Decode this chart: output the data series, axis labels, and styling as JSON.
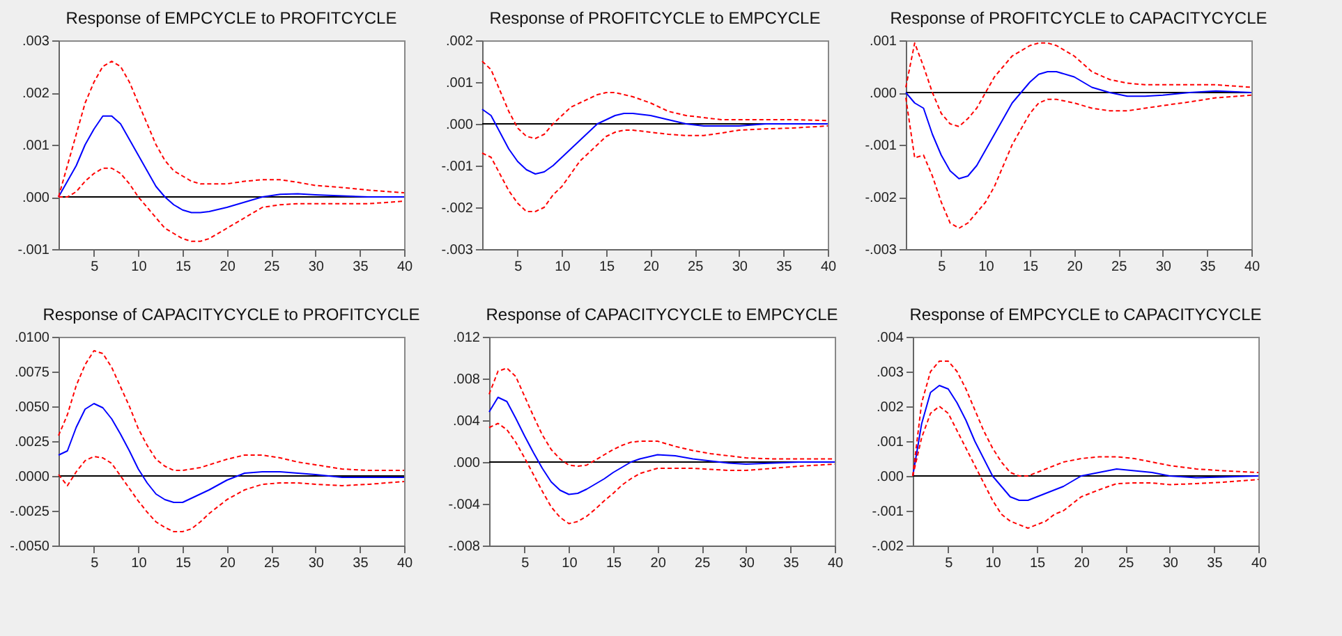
{
  "chart_data": [
    {
      "type": "line",
      "title": "Response of EMPCYCLE to PROFITCYCLE",
      "x": [
        1,
        2,
        3,
        4,
        5,
        6,
        7,
        8,
        9,
        10,
        11,
        12,
        13,
        14,
        15,
        16,
        17,
        18,
        20,
        22,
        24,
        26,
        28,
        30,
        33,
        36,
        40
      ],
      "xlim": [
        1,
        40
      ],
      "xticks": [
        5,
        10,
        15,
        20,
        25,
        30,
        35,
        40
      ],
      "ylim": [
        -0.001,
        0.003
      ],
      "yticks": [
        {
          "value": -0.001,
          "label": "-.001"
        },
        {
          "value": 0,
          "label": ".000"
        },
        {
          "value": 0.001,
          "label": ".001"
        },
        {
          "value": 0.002,
          "label": ".002"
        },
        {
          "value": 0.003,
          "label": ".003"
        }
      ],
      "grid": false,
      "ref_lines": [
        {
          "axis": "y",
          "value": 0,
          "color": "#000000"
        }
      ],
      "series": [
        {
          "color": "#0000ff",
          "values": [
            0,
            0.0003,
            0.0006,
            0.001,
            0.0013,
            0.00155,
            0.00155,
            0.0014,
            0.0011,
            0.0008,
            0.0005,
            0.0002,
            0,
            -0.00015,
            -0.00025,
            -0.0003,
            -0.0003,
            -0.00028,
            -0.0002,
            -0.0001,
            0,
            5e-05,
            6e-05,
            4e-05,
            2e-05,
            0,
            0
          ]
        },
        {
          "color": "#ff0000",
          "line_style": "dashed",
          "values": [
            0,
            0.0006,
            0.0012,
            0.0018,
            0.0022,
            0.0025,
            0.0026,
            0.0025,
            0.0022,
            0.0018,
            0.0014,
            0.001,
            0.0007,
            0.0005,
            0.0004,
            0.0003,
            0.00025,
            0.00025,
            0.00025,
            0.0003,
            0.00033,
            0.00033,
            0.00028,
            0.00022,
            0.00018,
            0.00013,
            8e-05
          ]
        },
        {
          "color": "#ff0000",
          "line_style": "dashed",
          "values": [
            0,
            0,
            0.0001,
            0.0003,
            0.00045,
            0.00055,
            0.00055,
            0.00045,
            0.00025,
            0,
            -0.0002,
            -0.0004,
            -0.0006,
            -0.0007,
            -0.0008,
            -0.00085,
            -0.00085,
            -0.0008,
            -0.0006,
            -0.0004,
            -0.0002,
            -0.00015,
            -0.00013,
            -0.00013,
            -0.00013,
            -0.00013,
            -8e-05
          ]
        }
      ]
    },
    {
      "type": "line",
      "title": "Response of PROFITCYCLE to EMPCYCLE",
      "x": [
        1,
        2,
        3,
        4,
        5,
        6,
        7,
        8,
        9,
        10,
        11,
        12,
        13,
        14,
        15,
        16,
        17,
        18,
        20,
        22,
        24,
        26,
        28,
        30,
        33,
        36,
        40
      ],
      "xlim": [
        1,
        40
      ],
      "xticks": [
        5,
        10,
        15,
        20,
        25,
        30,
        35,
        40
      ],
      "ylim": [
        -0.003,
        0.002
      ],
      "yticks": [
        {
          "value": -0.003,
          "label": "-.003"
        },
        {
          "value": -0.002,
          "label": "-.002"
        },
        {
          "value": -0.001,
          "label": "-.001"
        },
        {
          "value": 0,
          "label": ".000"
        },
        {
          "value": 0.001,
          "label": ".001"
        },
        {
          "value": 0.002,
          "label": ".002"
        }
      ],
      "grid": false,
      "ref_lines": [
        {
          "axis": "y",
          "value": 0,
          "color": "#000000"
        }
      ],
      "series": [
        {
          "color": "#0000ff",
          "values": [
            0.00035,
            0.0002,
            -0.0002,
            -0.0006,
            -0.0009,
            -0.0011,
            -0.0012,
            -0.00115,
            -0.001,
            -0.0008,
            -0.0006,
            -0.0004,
            -0.0002,
            0,
            0.0001,
            0.0002,
            0.00025,
            0.00025,
            0.0002,
            0.0001,
            0,
            -5e-05,
            -5e-05,
            -5e-05,
            0,
            0,
            0
          ]
        },
        {
          "color": "#ff0000",
          "line_style": "dashed",
          "values": [
            0.0015,
            0.0013,
            0.0008,
            0.0003,
            -0.0001,
            -0.0003,
            -0.00035,
            -0.00025,
            0,
            0.0002,
            0.0004,
            0.0005,
            0.0006,
            0.0007,
            0.00075,
            0.00075,
            0.0007,
            0.00065,
            0.0005,
            0.0003,
            0.0002,
            0.00015,
            0.0001,
            0.0001,
            0.0001,
            0.0001,
            8e-05
          ]
        },
        {
          "color": "#ff0000",
          "line_style": "dashed",
          "values": [
            -0.0007,
            -0.0008,
            -0.0012,
            -0.0016,
            -0.0019,
            -0.0021,
            -0.0021,
            -0.002,
            -0.0017,
            -0.0015,
            -0.0012,
            -0.0009,
            -0.0007,
            -0.0005,
            -0.0003,
            -0.0002,
            -0.00015,
            -0.00015,
            -0.0002,
            -0.00025,
            -0.00028,
            -0.00028,
            -0.00022,
            -0.00015,
            -0.00012,
            -0.0001,
            -5e-05
          ]
        }
      ]
    },
    {
      "type": "line",
      "title": "Response of PROFITCYCLE to CAPACITYCYCLE",
      "x": [
        1,
        2,
        3,
        4,
        5,
        6,
        7,
        8,
        9,
        10,
        11,
        12,
        13,
        14,
        15,
        16,
        17,
        18,
        20,
        22,
        24,
        26,
        28,
        30,
        33,
        36,
        40
      ],
      "xlim": [
        1,
        40
      ],
      "xticks": [
        5,
        10,
        15,
        20,
        25,
        30,
        35,
        40
      ],
      "ylim": [
        -0.003,
        0.001
      ],
      "yticks": [
        {
          "value": -0.003,
          "label": "-.003"
        },
        {
          "value": -0.002,
          "label": "-.002"
        },
        {
          "value": -0.001,
          "label": "-.001"
        },
        {
          "value": 0,
          "label": ".000"
        },
        {
          "value": 0.001,
          "label": ".001"
        }
      ],
      "grid": false,
      "ref_lines": [
        {
          "axis": "y",
          "value": 0,
          "color": "#000000"
        }
      ],
      "series": [
        {
          "color": "#0000ff",
          "values": [
            0,
            -0.0002,
            -0.0003,
            -0.0008,
            -0.0012,
            -0.0015,
            -0.00165,
            -0.0016,
            -0.0014,
            -0.0011,
            -0.0008,
            -0.0005,
            -0.0002,
            0,
            0.0002,
            0.00035,
            0.0004,
            0.0004,
            0.0003,
            0.0001,
            0,
            -7e-05,
            -7e-05,
            -5e-05,
            0,
            3e-05,
            0
          ]
        },
        {
          "color": "#ff0000",
          "line_style": "dashed",
          "values": [
            0.0001,
            0.00095,
            0.0005,
            0,
            -0.0004,
            -0.0006,
            -0.00065,
            -0.0005,
            -0.0003,
            0,
            0.0003,
            0.0005,
            0.0007,
            0.0008,
            0.0009,
            0.00095,
            0.00095,
            0.0009,
            0.0007,
            0.0004,
            0.00025,
            0.00018,
            0.00015,
            0.00015,
            0.00015,
            0.00015,
            0.0001
          ]
        },
        {
          "color": "#ff0000",
          "line_style": "dashed",
          "values": [
            -0.0001,
            -0.00125,
            -0.0012,
            -0.0016,
            -0.0021,
            -0.0025,
            -0.0026,
            -0.0025,
            -0.0023,
            -0.0021,
            -0.0018,
            -0.0014,
            -0.001,
            -0.0007,
            -0.0004,
            -0.0002,
            -0.00013,
            -0.00013,
            -0.0002,
            -0.0003,
            -0.00035,
            -0.00035,
            -0.0003,
            -0.00025,
            -0.00018,
            -0.0001,
            -5e-05
          ]
        }
      ]
    },
    {
      "type": "line",
      "title": "Response of CAPACITYCYCLE to PROFITCYCLE",
      "x": [
        1,
        2,
        3,
        4,
        5,
        6,
        7,
        8,
        9,
        10,
        11,
        12,
        13,
        14,
        15,
        16,
        17,
        18,
        20,
        22,
        24,
        26,
        28,
        30,
        33,
        36,
        40
      ],
      "xlim": [
        1,
        40
      ],
      "xticks": [
        5,
        10,
        15,
        20,
        25,
        30,
        35,
        40
      ],
      "ylim": [
        -0.005,
        0.01
      ],
      "yticks": [
        {
          "value": -0.005,
          "label": "-.0050"
        },
        {
          "value": -0.0025,
          "label": "-.0025"
        },
        {
          "value": 0,
          "label": ".0000"
        },
        {
          "value": 0.0025,
          "label": ".0025"
        },
        {
          "value": 0.005,
          "label": ".0050"
        },
        {
          "value": 0.0075,
          "label": ".0075"
        },
        {
          "value": 0.01,
          "label": ".0100"
        }
      ],
      "grid": false,
      "ref_lines": [
        {
          "axis": "y",
          "value": 0,
          "color": "#000000"
        }
      ],
      "series": [
        {
          "color": "#0000ff",
          "values": [
            0.0015,
            0.0018,
            0.0035,
            0.0048,
            0.0052,
            0.0049,
            0.0041,
            0.003,
            0.0018,
            0.0005,
            -0.0005,
            -0.0013,
            -0.0017,
            -0.0019,
            -0.0019,
            -0.0016,
            -0.0013,
            -0.001,
            -0.0003,
            0.0002,
            0.0003,
            0.0003,
            0.0002,
            0.0001,
            -0.0001,
            -0.0001,
            -0.0001
          ]
        },
        {
          "color": "#ff0000",
          "line_style": "dashed",
          "values": [
            0.0029,
            0.0044,
            0.0065,
            0.008,
            0.009,
            0.0088,
            0.0078,
            0.0064,
            0.005,
            0.0034,
            0.0022,
            0.0012,
            0.0007,
            0.0004,
            0.0004,
            0.0005,
            0.0006,
            0.0008,
            0.0012,
            0.0015,
            0.0015,
            0.0013,
            0.001,
            0.0008,
            0.0005,
            0.0004,
            0.0004
          ]
        },
        {
          "color": "#ff0000",
          "line_style": "dashed",
          "values": [
            0.0001,
            -0.0007,
            0.0003,
            0.0011,
            0.0014,
            0.0013,
            0.0009,
            0,
            -0.0009,
            -0.0018,
            -0.0026,
            -0.0033,
            -0.0037,
            -0.004,
            -0.004,
            -0.0038,
            -0.0033,
            -0.0027,
            -0.0017,
            -0.001,
            -0.0006,
            -0.0005,
            -0.0005,
            -0.0006,
            -0.0007,
            -0.0006,
            -0.0004
          ]
        }
      ]
    },
    {
      "type": "line",
      "title": "Response of CAPACITYCYCLE to EMPCYCLE",
      "x": [
        1,
        2,
        3,
        4,
        5,
        6,
        7,
        8,
        9,
        10,
        11,
        12,
        13,
        14,
        15,
        16,
        17,
        18,
        20,
        22,
        24,
        26,
        28,
        30,
        33,
        36,
        40
      ],
      "xlim": [
        1,
        40
      ],
      "xticks": [
        5,
        10,
        15,
        20,
        25,
        30,
        35,
        40
      ],
      "ylim": [
        -0.008,
        0.012
      ],
      "yticks": [
        {
          "value": -0.008,
          "label": "-.008"
        },
        {
          "value": -0.004,
          "label": "-.004"
        },
        {
          "value": 0,
          "label": ".000"
        },
        {
          "value": 0.004,
          "label": ".004"
        },
        {
          "value": 0.008,
          "label": ".008"
        },
        {
          "value": 0.012,
          "label": ".012"
        }
      ],
      "grid": false,
      "ref_lines": [
        {
          "axis": "y",
          "value": 0,
          "color": "#000000"
        }
      ],
      "series": [
        {
          "color": "#0000ff",
          "values": [
            0.0048,
            0.0062,
            0.0058,
            0.0042,
            0.0025,
            0.0009,
            -0.0006,
            -0.0019,
            -0.0027,
            -0.0031,
            -0.003,
            -0.0026,
            -0.0021,
            -0.0016,
            -0.001,
            -0.0005,
            0,
            0.0003,
            0.0007,
            0.0006,
            0.0003,
            0.0001,
            -0.0001,
            -0.0002,
            -0.0001,
            0,
            0
          ]
        },
        {
          "color": "#ff0000",
          "line_style": "dashed",
          "values": [
            0.0065,
            0.0087,
            0.009,
            0.0082,
            0.0063,
            0.0044,
            0.0026,
            0.0012,
            0.0003,
            -0.0003,
            -0.0004,
            -0.0003,
            0.0002,
            0.0007,
            0.0012,
            0.0016,
            0.0019,
            0.002,
            0.002,
            0.0015,
            0.0011,
            0.0008,
            0.0006,
            0.0004,
            0.0003,
            0.0003,
            0.0003
          ]
        },
        {
          "color": "#ff0000",
          "line_style": "dashed",
          "values": [
            0.0033,
            0.0037,
            0.0031,
            0.0019,
            0.0004,
            -0.0012,
            -0.0028,
            -0.0043,
            -0.0053,
            -0.0059,
            -0.0057,
            -0.0052,
            -0.0045,
            -0.0037,
            -0.003,
            -0.0022,
            -0.0016,
            -0.0011,
            -0.0006,
            -0.0006,
            -0.0006,
            -0.0007,
            -0.0008,
            -0.0008,
            -0.0006,
            -0.0004,
            -0.0002
          ]
        }
      ]
    },
    {
      "type": "line",
      "title": "Response of EMPCYCLE to CAPACITYCYCLE",
      "x": [
        1,
        2,
        3,
        4,
        5,
        6,
        7,
        8,
        9,
        10,
        11,
        12,
        13,
        14,
        15,
        16,
        17,
        18,
        20,
        22,
        24,
        26,
        28,
        30,
        33,
        36,
        40
      ],
      "xlim": [
        1,
        40
      ],
      "xticks": [
        5,
        10,
        15,
        20,
        25,
        30,
        35,
        40
      ],
      "ylim": [
        -0.002,
        0.004
      ],
      "yticks": [
        {
          "value": -0.002,
          "label": "-.002"
        },
        {
          "value": -0.001,
          "label": "-.001"
        },
        {
          "value": 0,
          "label": ".000"
        },
        {
          "value": 0.001,
          "label": ".001"
        },
        {
          "value": 0.002,
          "label": ".002"
        },
        {
          "value": 0.003,
          "label": ".003"
        },
        {
          "value": 0.004,
          "label": ".004"
        }
      ],
      "grid": false,
      "ref_lines": [
        {
          "axis": "y",
          "value": 0,
          "color": "#000000"
        }
      ],
      "series": [
        {
          "color": "#0000ff",
          "values": [
            0,
            0.0015,
            0.0024,
            0.0026,
            0.0025,
            0.0021,
            0.0016,
            0.001,
            0.0005,
            0,
            -0.0003,
            -0.0006,
            -0.0007,
            -0.0007,
            -0.0006,
            -0.0005,
            -0.0004,
            -0.0003,
            0,
            0.0001,
            0.0002,
            0.00015,
            0.0001,
            0,
            -5e-05,
            -3e-05,
            0
          ]
        },
        {
          "color": "#ff0000",
          "line_style": "dashed",
          "values": [
            0,
            0.0021,
            0.003,
            0.0033,
            0.0033,
            0.003,
            0.0025,
            0.0019,
            0.0013,
            0.0008,
            0.0004,
            0.0001,
            0,
            0,
            0.0001,
            0.0002,
            0.0003,
            0.0004,
            0.0005,
            0.00055,
            0.00055,
            0.0005,
            0.0004,
            0.0003,
            0.0002,
            0.00015,
            0.0001
          ]
        },
        {
          "color": "#ff0000",
          "line_style": "dashed",
          "values": [
            0,
            0.0011,
            0.0018,
            0.002,
            0.0018,
            0.0013,
            0.0008,
            0.0003,
            -0.0002,
            -0.0007,
            -0.0011,
            -0.0013,
            -0.0014,
            -0.0015,
            -0.0014,
            -0.0013,
            -0.0011,
            -0.001,
            -0.0006,
            -0.0004,
            -0.00022,
            -0.0002,
            -0.0002,
            -0.00025,
            -0.00022,
            -0.00018,
            -0.0001
          ]
        }
      ]
    }
  ]
}
